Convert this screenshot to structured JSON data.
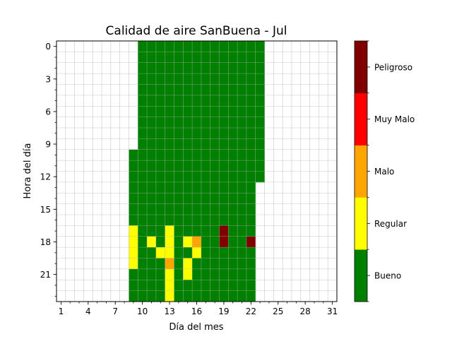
{
  "chart_data": {
    "type": "heatmap",
    "title": "Calidad de aire SanBuena - Jul",
    "xlabel": "Día del mes",
    "ylabel": "Hora del día",
    "x_tick_labels": [
      "1",
      "4",
      "7",
      "10",
      "13",
      "16",
      "19",
      "22",
      "25",
      "28",
      "31"
    ],
    "y_tick_labels": [
      "0",
      "3",
      "6",
      "9",
      "12",
      "15",
      "18",
      "21"
    ],
    "x_ticks": [
      1,
      4,
      7,
      10,
      13,
      16,
      19,
      22,
      25,
      28,
      31
    ],
    "y_ticks": [
      0,
      3,
      6,
      9,
      12,
      15,
      18,
      21
    ],
    "days": [
      1,
      31
    ],
    "hours": [
      0,
      23
    ],
    "grid": true,
    "colorbar": {
      "categories": [
        "Bueno",
        "Regular",
        "Malo",
        "Muy Malo",
        "Peligroso"
      ],
      "colors": [
        "#008000",
        "#ffff00",
        "#ffa500",
        "#ff0000",
        "#800000"
      ]
    },
    "default_category": "Bueno",
    "coverage": [
      {
        "day_start": 10,
        "day_end": 23,
        "hour_start": 0,
        "hour_end": 12
      },
      {
        "day_start": 9,
        "day_end": 9,
        "hour_start": 10,
        "hour_end": 23
      },
      {
        "day_start": 10,
        "day_end": 22,
        "hour_start": 13,
        "hour_end": 23
      }
    ],
    "exceptions": [
      {
        "day": 9,
        "hour": 17,
        "category": "Regular"
      },
      {
        "day": 9,
        "hour": 18,
        "category": "Regular"
      },
      {
        "day": 9,
        "hour": 19,
        "category": "Regular"
      },
      {
        "day": 9,
        "hour": 20,
        "category": "Regular"
      },
      {
        "day": 11,
        "hour": 18,
        "category": "Regular"
      },
      {
        "day": 12,
        "hour": 19,
        "category": "Regular"
      },
      {
        "day": 13,
        "hour": 17,
        "category": "Regular"
      },
      {
        "day": 13,
        "hour": 18,
        "category": "Regular"
      },
      {
        "day": 13,
        "hour": 19,
        "category": "Regular"
      },
      {
        "day": 13,
        "hour": 20,
        "category": "Malo"
      },
      {
        "day": 13,
        "hour": 21,
        "category": "Regular"
      },
      {
        "day": 13,
        "hour": 22,
        "category": "Regular"
      },
      {
        "day": 13,
        "hour": 23,
        "category": "Regular"
      },
      {
        "day": 15,
        "hour": 18,
        "category": "Regular"
      },
      {
        "day": 15,
        "hour": 20,
        "category": "Regular"
      },
      {
        "day": 15,
        "hour": 21,
        "category": "Regular"
      },
      {
        "day": 16,
        "hour": 18,
        "category": "Malo"
      },
      {
        "day": 16,
        "hour": 19,
        "category": "Regular"
      },
      {
        "day": 19,
        "hour": 17,
        "category": "Peligroso"
      },
      {
        "day": 19,
        "hour": 18,
        "category": "Peligroso"
      },
      {
        "day": 22,
        "hour": 18,
        "category": "Peligroso"
      }
    ]
  }
}
